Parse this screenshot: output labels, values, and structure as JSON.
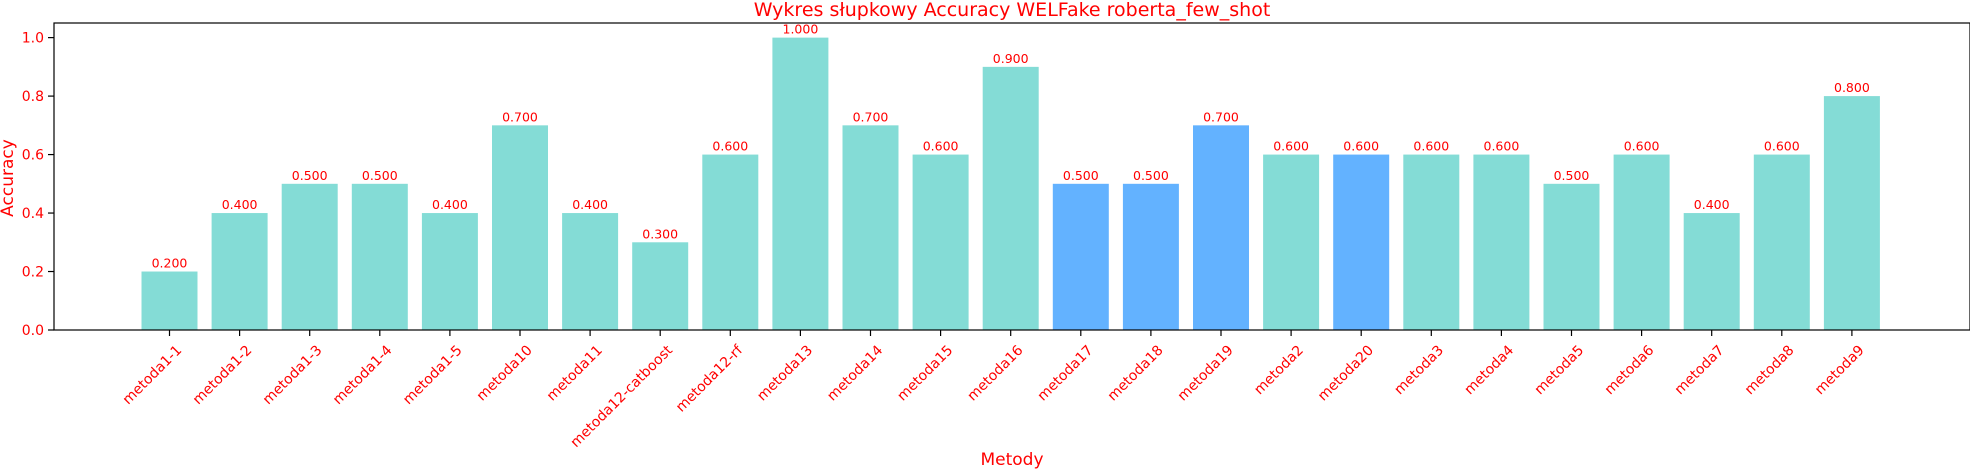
{
  "chart_data": {
    "type": "bar",
    "title": "Wykres słupkowy Accuracy WELFake roberta_few_shot",
    "xlabel": "Metody",
    "ylabel": "Accuracy",
    "ylim": [
      0,
      1.05
    ],
    "yticks": [
      "0.0",
      "0.2",
      "0.4",
      "0.6",
      "0.8",
      "1.0"
    ],
    "grid": false,
    "legend": "none",
    "categories": [
      "metoda1-1",
      "metoda1-2",
      "metoda1-3",
      "metoda1-4",
      "metoda1-5",
      "metoda10",
      "metoda11",
      "metoda12-catboost",
      "metoda12-rf",
      "metoda13",
      "metoda14",
      "metoda15",
      "metoda16",
      "metoda17",
      "metoda18",
      "metoda19",
      "metoda2",
      "metoda20",
      "metoda3",
      "metoda4",
      "metoda5",
      "metoda6",
      "metoda7",
      "metoda8",
      "metoda9"
    ],
    "values": [
      0.2,
      0.4,
      0.5,
      0.5,
      0.4,
      0.7,
      0.4,
      0.3,
      0.6,
      1.0,
      0.7,
      0.6,
      0.9,
      0.5,
      0.5,
      0.7,
      0.6,
      0.6,
      0.6,
      0.6,
      0.5,
      0.6,
      0.4,
      0.6,
      0.8
    ],
    "value_labels": [
      "0.200",
      "0.400",
      "0.500",
      "0.500",
      "0.400",
      "0.700",
      "0.400",
      "0.300",
      "0.600",
      "1.000",
      "0.700",
      "0.600",
      "0.900",
      "0.500",
      "0.500",
      "0.700",
      "0.600",
      "0.600",
      "0.600",
      "0.600",
      "0.500",
      "0.600",
      "0.400",
      "0.600",
      "0.800"
    ],
    "bar_colors": [
      "#84dcd6",
      "#84dcd6",
      "#84dcd6",
      "#84dcd6",
      "#84dcd6",
      "#84dcd6",
      "#84dcd6",
      "#84dcd6",
      "#84dcd6",
      "#84dcd6",
      "#84dcd6",
      "#84dcd6",
      "#84dcd6",
      "#63b2ff",
      "#63b2ff",
      "#63b2ff",
      "#84dcd6",
      "#63b2ff",
      "#84dcd6",
      "#84dcd6",
      "#84dcd6",
      "#84dcd6",
      "#84dcd6",
      "#84dcd6",
      "#84dcd6"
    ],
    "text_color": "#ff0000"
  }
}
